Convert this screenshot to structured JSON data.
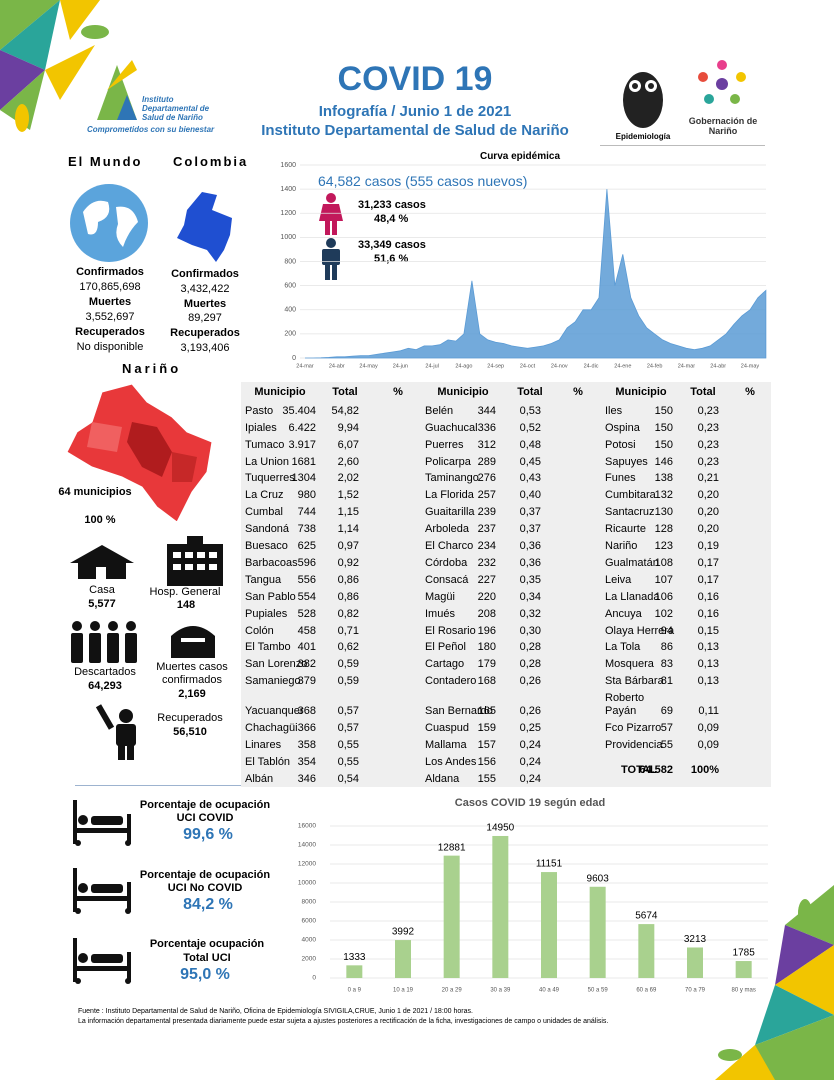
{
  "header": {
    "logo_name": "Instituto Departamental de Salud de Nariño",
    "logo_slogan": "Comprometidos con su bienestar",
    "title": "COVID 19",
    "subtitle": "Infografía / Junio 1 de 2021",
    "institution": "Instituto Departamental de Salud de Nariño",
    "epi_logo": "Epidemiología",
    "gov_logo": "Gobernación de Nariño"
  },
  "world": {
    "heading": "El Mundo",
    "confirmed_label": "Confirmados",
    "confirmed": "170,865,698",
    "deaths_label": "Muertes",
    "deaths": "3,552,697",
    "recovered_label": "Recuperados",
    "recovered": "No disponible"
  },
  "colombia": {
    "heading": "Colombia",
    "confirmed_label": "Confirmados",
    "confirmed": "3,432,422",
    "deaths_label": "Muertes",
    "deaths": "89,297",
    "recovered_label": "Recuperados",
    "recovered": "3,193,406"
  },
  "narino": {
    "heading": "Nariño",
    "municipalities": "64 municipios",
    "percent": "100 %",
    "home_label": "Casa",
    "home": "5,577",
    "hospital_label": "Hosp. General",
    "hospital": "148",
    "discarded_label": "Descartados",
    "discarded": "64,293",
    "deaths_label": "Muertes casos confirmados",
    "deaths": "2,169",
    "recovered_label": "Recuperados",
    "recovered": "56,510"
  },
  "curve_info": {
    "total": "64,582  casos (555 casos nuevos)",
    "female_cases": "31,233  casos",
    "female_pct": "48,4 %",
    "male_cases": "33,349  casos",
    "male_pct": "51,6 %"
  },
  "table": {
    "headers": [
      "Municipio",
      "Total",
      "%"
    ],
    "columns": [
      [
        [
          "Pasto",
          "35.404",
          "54,82"
        ],
        [
          "Ipiales",
          "6.422",
          "9,94"
        ],
        [
          "Tumaco",
          "3.917",
          "6,07"
        ],
        [
          "La Union",
          "1681",
          "2,60"
        ],
        [
          "Tuquerres",
          "1304",
          "2,02"
        ],
        [
          "La Cruz",
          "980",
          "1,52"
        ],
        [
          "Cumbal",
          "744",
          "1,15"
        ],
        [
          "Sandoná",
          "738",
          "1,14"
        ],
        [
          "Buesaco",
          "625",
          "0,97"
        ],
        [
          "Barbacoas",
          "596",
          "0,92"
        ],
        [
          "Tangua",
          "556",
          "0,86"
        ],
        [
          "San Pablo",
          "554",
          "0,86"
        ],
        [
          "Pupiales",
          "528",
          "0,82"
        ],
        [
          "Colón",
          "458",
          "0,71"
        ],
        [
          "El Tambo",
          "401",
          "0,62"
        ],
        [
          "San Lorenzo",
          "382",
          "0,59"
        ],
        [
          "Samaniego",
          "379",
          "0,59"
        ],
        [
          "Yacuanquer",
          "368",
          "0,57"
        ],
        [
          "Chachagüi",
          "366",
          "0,57"
        ],
        [
          "Linares",
          "358",
          "0,55"
        ],
        [
          "El Tablón",
          "354",
          "0,55"
        ],
        [
          "Albán",
          "346",
          "0,54"
        ]
      ],
      [
        [
          "Belén",
          "344",
          "0,53"
        ],
        [
          "Guachucal",
          "336",
          "0,52"
        ],
        [
          "Puerres",
          "312",
          "0,48"
        ],
        [
          "Policarpa",
          "289",
          "0,45"
        ],
        [
          "Taminango",
          "276",
          "0,43"
        ],
        [
          "La Florida",
          "257",
          "0,40"
        ],
        [
          "Guaitarilla",
          "239",
          "0,37"
        ],
        [
          "Arboleda",
          "237",
          "0,37"
        ],
        [
          "El Charco",
          "234",
          "0,36"
        ],
        [
          "Córdoba",
          "232",
          "0,36"
        ],
        [
          "Consacá",
          "227",
          "0,35"
        ],
        [
          "Magüi",
          "220",
          "0,34"
        ],
        [
          "Imués",
          "208",
          "0,32"
        ],
        [
          "El Rosario",
          "196",
          "0,30"
        ],
        [
          "El Peñol",
          "180",
          "0,28"
        ],
        [
          "Cartago",
          "179",
          "0,28"
        ],
        [
          "Contadero",
          "168",
          "0,26"
        ],
        [
          "San Bernardo",
          "165",
          "0,26"
        ],
        [
          "Cuaspud",
          "159",
          "0,25"
        ],
        [
          "Mallama",
          "157",
          "0,24"
        ],
        [
          "Los Andes",
          "156",
          "0,24"
        ],
        [
          "Aldana",
          "155",
          "0,24"
        ]
      ],
      [
        [
          "Iles",
          "150",
          "0,23"
        ],
        [
          "Ospina",
          "150",
          "0,23"
        ],
        [
          "Potosi",
          "150",
          "0,23"
        ],
        [
          "Sapuyes",
          "146",
          "0,23"
        ],
        [
          "Funes",
          "138",
          "0,21"
        ],
        [
          "Cumbitara",
          "132",
          "0,20"
        ],
        [
          "Santacruz",
          "130",
          "0,20"
        ],
        [
          "Ricaurte",
          "128",
          "0,20"
        ],
        [
          "Nariño",
          "123",
          "0,19"
        ],
        [
          "Gualmatán",
          "108",
          "0,17"
        ],
        [
          "Leiva",
          "107",
          "0,17"
        ],
        [
          "La Llanada",
          "106",
          "0,16"
        ],
        [
          "Ancuya",
          "102",
          "0,16"
        ],
        [
          "Olaya Herrera",
          "94",
          "0,15"
        ],
        [
          "La Tola",
          "86",
          "0,13"
        ],
        [
          "Mosquera",
          "83",
          "0,13"
        ],
        [
          "Sta Bárbara",
          "81",
          "0,13"
        ],
        [
          "Roberto Payán",
          "69",
          "0,11"
        ],
        [
          "Fco Pizarro",
          "57",
          "0,09"
        ],
        [
          "Providencia",
          "55",
          "0,09"
        ]
      ]
    ],
    "total": [
      "TOTAL",
      "64.582",
      "100%"
    ]
  },
  "icu": [
    {
      "label": "Porcentaje de ocupación",
      "unit": "UCI COVID",
      "value": "99,6 %"
    },
    {
      "label": "Porcentaje de ocupación",
      "unit": "UCI No COVID",
      "value": "84,2 %"
    },
    {
      "label": "Porcentaje ocupación",
      "unit": "Total UCI",
      "value": "95,0 %"
    }
  ],
  "footer": [
    "Fuente : Instituto Departamental de Salud de Nariño, Oficina de Epidemiología SIVIGILA,CRUE,  Junio 1 de 2021 / 18:00  horas.",
    "La información departamental presentada diariamente puede estar sujeta a ajustes posteriores a  rectificación de la ficha, investigaciones de campo o unidades de análisis."
  ],
  "chart_data": [
    {
      "type": "area",
      "title": "Curva epidémica",
      "color": "#5b9bd5",
      "categories": [
        "24-mar",
        null,
        null,
        null,
        "24-abr",
        null,
        null,
        null,
        "24-may",
        null,
        null,
        null,
        "24-jun",
        null,
        null,
        null,
        "24-jul",
        null,
        null,
        null,
        "24-ago",
        null,
        null,
        null,
        "24-sep",
        null,
        null,
        null,
        "24-oct",
        null,
        null,
        null,
        "24-nov",
        null,
        null,
        null,
        "24-dic",
        null,
        null,
        null,
        "24-ene",
        null,
        null,
        null,
        "24-feb",
        null,
        null,
        null,
        "24-mar",
        null,
        null,
        null,
        "24-abr",
        null,
        null,
        null,
        "24-may",
        null,
        null
      ],
      "values": [
        0,
        0,
        2,
        5,
        10,
        10,
        15,
        20,
        20,
        30,
        40,
        50,
        60,
        80,
        70,
        100,
        100,
        110,
        150,
        140,
        200,
        640,
        200,
        150,
        130,
        120,
        100,
        90,
        80,
        90,
        100,
        120,
        150,
        250,
        300,
        400,
        400,
        500,
        1400,
        600,
        860,
        500,
        350,
        250,
        200,
        150,
        120,
        100,
        80,
        70,
        80,
        100,
        150,
        200,
        280,
        350,
        400,
        500,
        560
      ],
      "ylim": [
        0,
        1600
      ],
      "yticks": [
        0,
        200,
        400,
        600,
        800,
        1000,
        1200,
        1400,
        1600
      ],
      "grid": true
    },
    {
      "type": "bar",
      "title": "Casos COVID 19  según edad",
      "color": "#a9d18e",
      "categories": [
        "0 a 9",
        "10 a 19",
        "20 a 29",
        "30 a 39",
        "40 a 49",
        "50 a 59",
        "60 a 69",
        "70 a 79",
        "80 y mas"
      ],
      "values": [
        1333,
        3992,
        12881,
        14950,
        11151,
        9603,
        5674,
        3213,
        1785
      ],
      "ylim": [
        0,
        16000
      ],
      "yticks": [
        0,
        2000,
        4000,
        6000,
        8000,
        10000,
        12000,
        14000,
        16000
      ],
      "grid": true
    }
  ]
}
